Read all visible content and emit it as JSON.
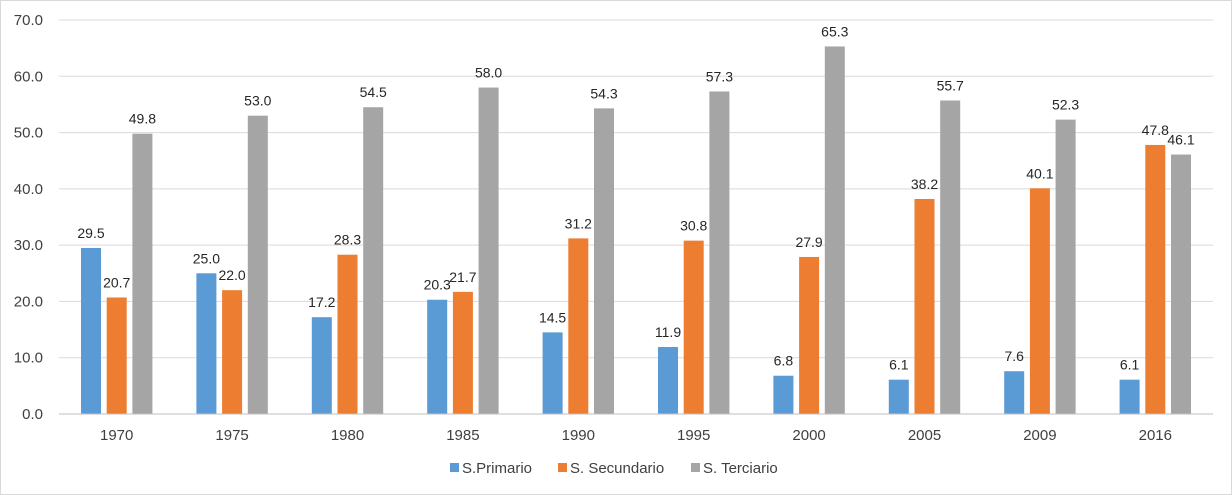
{
  "chart_data": {
    "type": "bar",
    "categories": [
      "1970",
      "1975",
      "1980",
      "1985",
      "1990",
      "1995",
      "2000",
      "2005",
      "2009",
      "2016"
    ],
    "series": [
      {
        "name": "S.Primario",
        "color": "#5b9bd5",
        "values": [
          29.5,
          25.0,
          17.2,
          20.3,
          14.5,
          11.9,
          6.8,
          6.1,
          7.6,
          6.1
        ]
      },
      {
        "name": "S. Secundario",
        "color": "#ed7d31",
        "values": [
          20.7,
          22.0,
          28.3,
          21.7,
          31.2,
          30.8,
          27.9,
          38.2,
          40.1,
          47.8
        ]
      },
      {
        "name": "S. Terciario",
        "color": "#a5a5a5",
        "values": [
          49.8,
          53.0,
          54.5,
          58.0,
          54.3,
          57.3,
          65.3,
          55.7,
          52.3,
          46.1
        ]
      }
    ],
    "yticks": [
      "0.0",
      "10.0",
      "20.0",
      "30.0",
      "40.0",
      "50.0",
      "60.0",
      "70.0"
    ],
    "ylim": [
      0,
      70
    ],
    "title": "",
    "xlabel": "",
    "ylabel": "",
    "grid": true,
    "legend": "bottom-center",
    "data_labels": true
  }
}
